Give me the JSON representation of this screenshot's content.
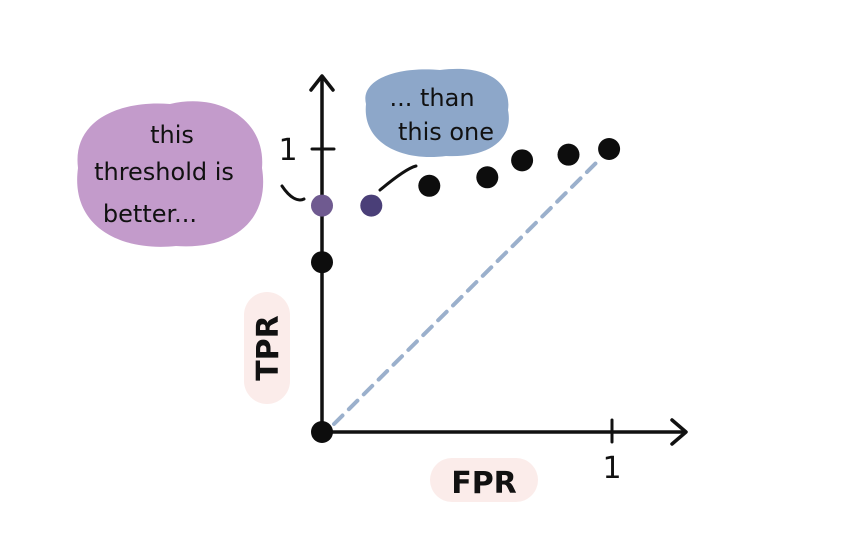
{
  "chart_data": {
    "type": "scatter",
    "title": "",
    "xlabel": "FPR",
    "ylabel": "TPR",
    "xlim": [
      0,
      1.25
    ],
    "ylim": [
      0,
      1.27
    ],
    "x_ticks": [
      {
        "value": 1,
        "label": "1"
      }
    ],
    "y_ticks": [
      {
        "value": 1,
        "label": "1"
      }
    ],
    "points": [
      {
        "x": 0.0,
        "y": 0.0,
        "color": "#0d0d0d"
      },
      {
        "x": 0.0,
        "y": 0.6,
        "color": "#0d0d0d"
      },
      {
        "x": 0.0,
        "y": 0.8,
        "color": "#6f5a90",
        "highlight": "better"
      },
      {
        "x": 0.17,
        "y": 0.8,
        "color": "#4a3f78",
        "highlight": "worse"
      },
      {
        "x": 0.37,
        "y": 0.87,
        "color": "#0d0d0d"
      },
      {
        "x": 0.57,
        "y": 0.9,
        "color": "#0d0d0d"
      },
      {
        "x": 0.69,
        "y": 0.96,
        "color": "#0d0d0d"
      },
      {
        "x": 0.85,
        "y": 0.98,
        "color": "#0d0d0d"
      },
      {
        "x": 0.99,
        "y": 1.0,
        "color": "#0d0d0d"
      }
    ],
    "reference_line": {
      "from": [
        0,
        0
      ],
      "to": [
        1,
        1
      ],
      "style": "dashed",
      "color": "#9bb0cc"
    },
    "annotations": [
      {
        "lines": [
          "this",
          "threshold is",
          "better..."
        ],
        "bubble_color": "#c39bcb"
      },
      {
        "lines": [
          "... than",
          "this one"
        ],
        "bubble_color": "#8da7c9"
      }
    ],
    "label_bubble_color": "#fbecea"
  }
}
